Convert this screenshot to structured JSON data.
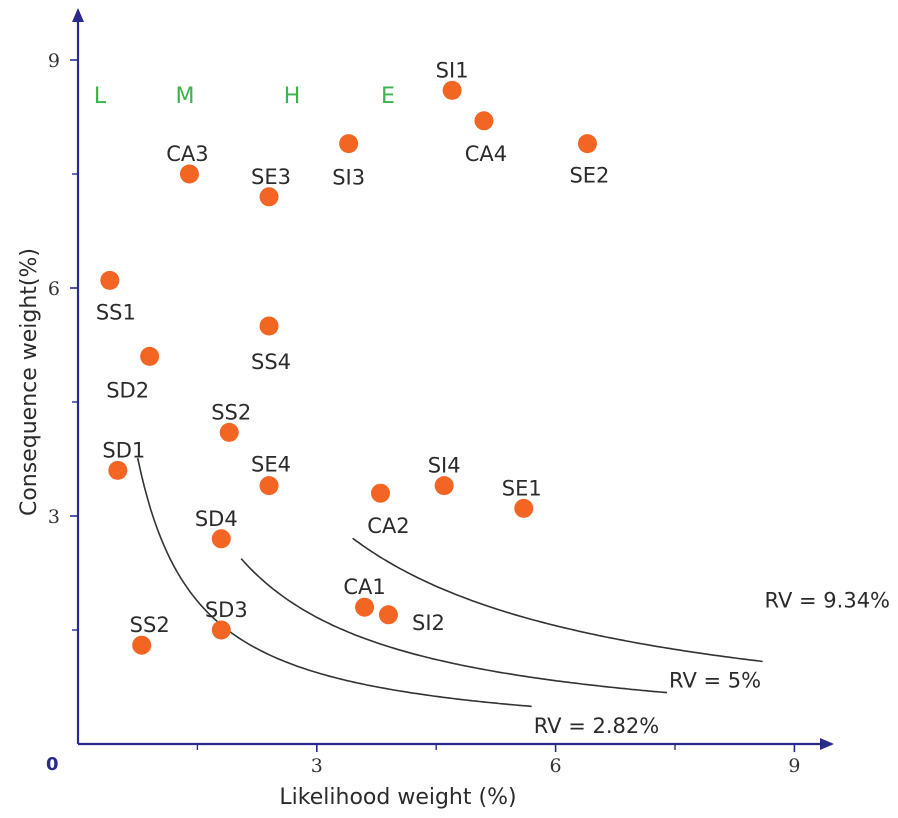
{
  "chart_data": {
    "type": "scatter",
    "xlabel": "Likelihood weight (%)",
    "ylabel": "Consequence weight(%)",
    "xlim": [
      0,
      9
    ],
    "ylim": [
      0,
      9
    ],
    "origin_label": "0",
    "x_ticks": [
      {
        "value": 3,
        "label": "3"
      },
      {
        "value": 6,
        "label": "6"
      },
      {
        "value": 9,
        "label": "9"
      }
    ],
    "y_ticks": [
      {
        "value": 3,
        "label": "3"
      },
      {
        "value": 6,
        "label": "6"
      },
      {
        "value": 9,
        "label": "9"
      }
    ],
    "grid": false,
    "marker_color": "#f26522",
    "axis_color": "#2a2a8c",
    "zone_label_color": "#3bb34a",
    "zones": [
      "L",
      "M",
      "H",
      "E"
    ],
    "points": [
      {
        "label": "SI1",
        "x": 4.7,
        "y": 8.6
      },
      {
        "label": "CA4",
        "x": 5.1,
        "y": 8.2
      },
      {
        "label": "SE2",
        "x": 6.4,
        "y": 7.9
      },
      {
        "label": "SI3",
        "x": 3.4,
        "y": 7.9
      },
      {
        "label": "CA3",
        "x": 1.4,
        "y": 7.5
      },
      {
        "label": "SE3",
        "x": 2.4,
        "y": 7.2
      },
      {
        "label": "SS1",
        "x": 0.4,
        "y": 6.1
      },
      {
        "label": "SS4",
        "x": 2.4,
        "y": 5.5
      },
      {
        "label": "SD2",
        "x": 0.9,
        "y": 5.1
      },
      {
        "label": "SS2",
        "x": 1.9,
        "y": 4.1
      },
      {
        "label": "SD1",
        "x": 0.5,
        "y": 3.6
      },
      {
        "label": "SE4",
        "x": 2.4,
        "y": 3.4
      },
      {
        "label": "CA2",
        "x": 3.8,
        "y": 3.3
      },
      {
        "label": "SI4",
        "x": 4.6,
        "y": 3.4
      },
      {
        "label": "SE1",
        "x": 5.6,
        "y": 3.1
      },
      {
        "label": "SD4",
        "x": 1.8,
        "y": 2.7
      },
      {
        "label": "CA1",
        "x": 3.6,
        "y": 1.8
      },
      {
        "label": "SI2",
        "x": 3.9,
        "y": 1.7
      },
      {
        "label": "SD3",
        "x": 1.8,
        "y": 1.5
      },
      {
        "label": "SS2",
        "x": 0.8,
        "y": 1.3
      }
    ],
    "curves": [
      {
        "label": "RV = 2.82%",
        "k": 2.82
      },
      {
        "label": "RV = 5%",
        "k": 5
      },
      {
        "label": "RV = 9.34%",
        "k": 9.34
      }
    ]
  }
}
